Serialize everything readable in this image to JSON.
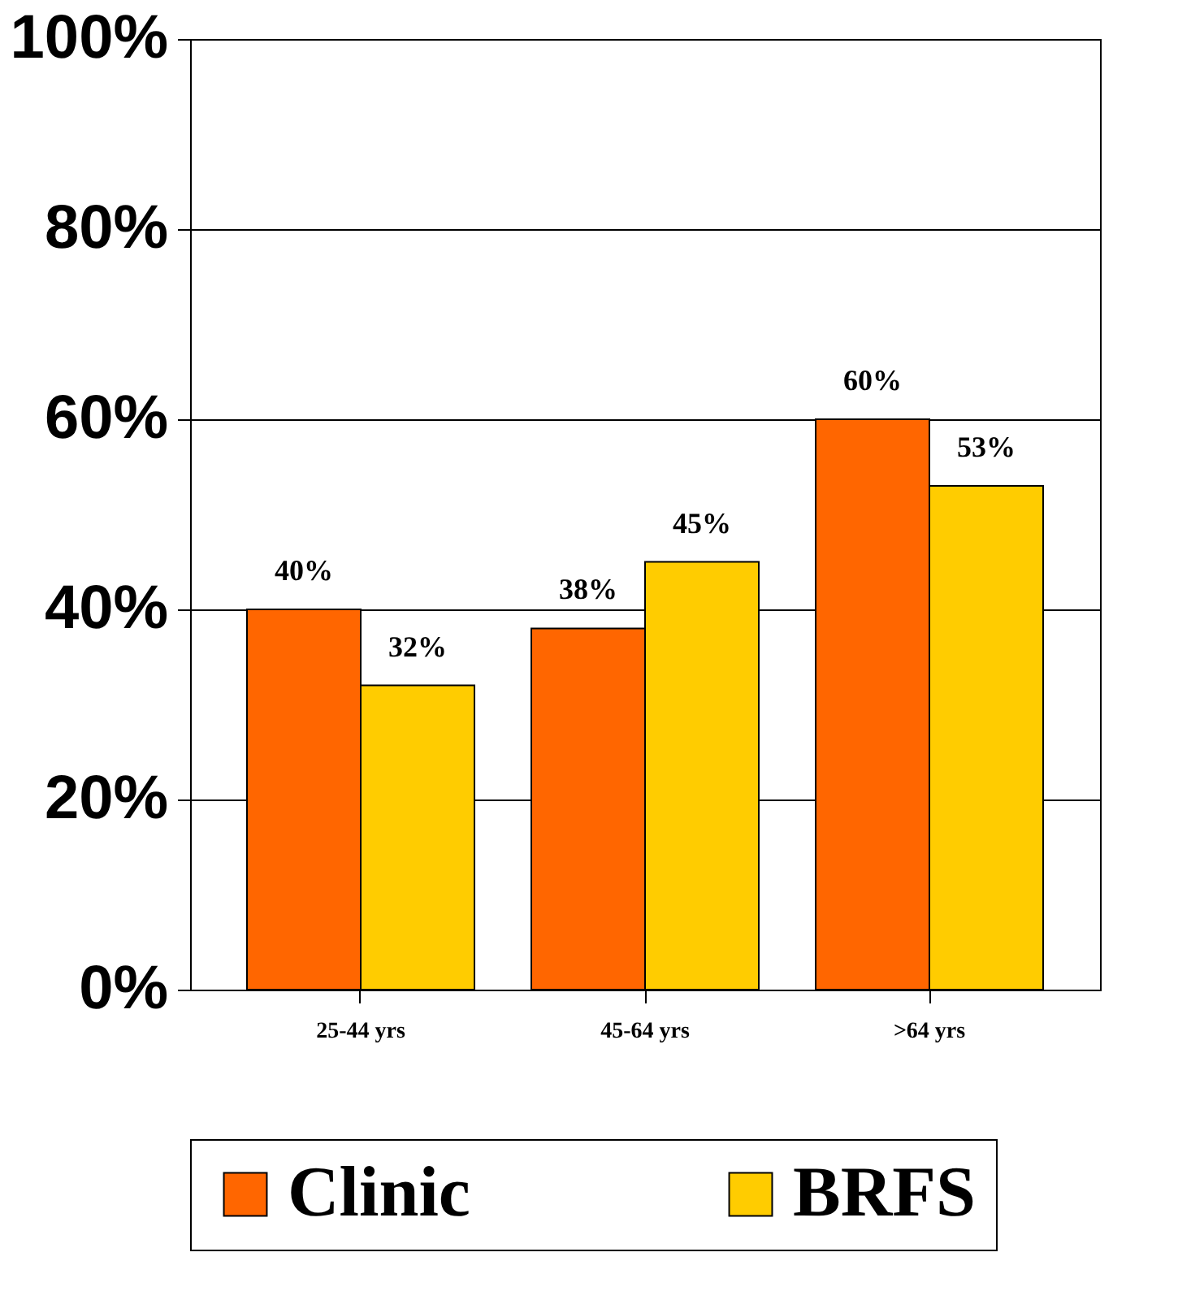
{
  "chart_data": {
    "type": "bar",
    "categories": [
      "25-44 yrs",
      "45-64 yrs",
      ">64 yrs"
    ],
    "series": [
      {
        "name": "Clinic",
        "color": "#ff6600",
        "values": [
          40,
          38,
          60
        ],
        "value_labels": [
          "40%",
          "38%",
          "60%"
        ]
      },
      {
        "name": "BRFS",
        "color": "#ffcc00",
        "values": [
          32,
          45,
          53
        ],
        "value_labels": [
          "32%",
          "45%",
          "53%"
        ]
      }
    ],
    "ylim": [
      0,
      100
    ],
    "yticks": [
      {
        "value": 0,
        "label": "0%"
      },
      {
        "value": 20,
        "label": "20%"
      },
      {
        "value": 40,
        "label": "40%"
      },
      {
        "value": 60,
        "label": "60%"
      },
      {
        "value": 80,
        "label": "80%"
      },
      {
        "value": 100,
        "label": "100%"
      }
    ],
    "grid": "y",
    "legend": "bottom"
  }
}
